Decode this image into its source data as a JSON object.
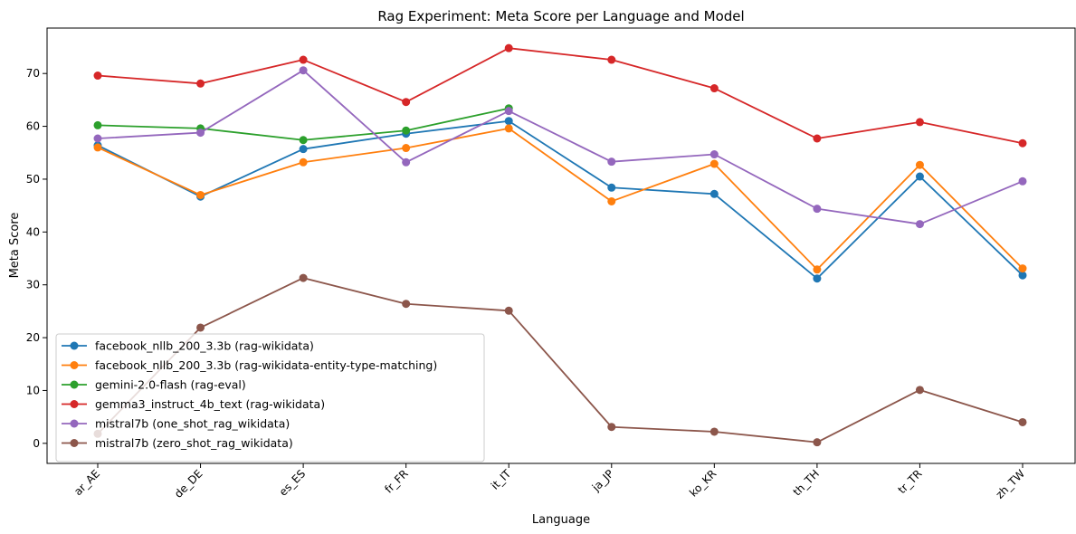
{
  "chart_data": {
    "type": "line",
    "title": "Rag Experiment: Meta Score per Language and Model",
    "xlabel": "Language",
    "ylabel": "Meta Score",
    "categories": [
      "ar_AE",
      "de_DE",
      "es_ES",
      "fr_FR",
      "it_IT",
      "ja_JP",
      "ko_KR",
      "th_TH",
      "tr_TR",
      "zh_TW"
    ],
    "ylim": [
      -3.8,
      78.6
    ],
    "yticks": [
      0,
      10,
      20,
      30,
      40,
      50,
      60,
      70
    ],
    "grid": false,
    "legend_position": "lower-left",
    "series": [
      {
        "name": "facebook_nllb_200_3.3b (rag-wikidata)",
        "color": "#1f77b4",
        "values": [
          56.4,
          46.7,
          55.7,
          58.6,
          61.0,
          48.4,
          47.2,
          31.2,
          50.5,
          31.8
        ]
      },
      {
        "name": "facebook_nllb_200_3.3b (rag-wikidata-entity-type-matching)",
        "color": "#ff7f0e",
        "values": [
          56.0,
          47.0,
          53.2,
          55.9,
          59.6,
          45.8,
          52.9,
          32.9,
          52.7,
          33.1
        ]
      },
      {
        "name": "gemini-2.0-flash (rag-eval)",
        "color": "#2ca02c",
        "values": [
          60.2,
          59.6,
          57.4,
          59.2,
          63.4,
          null,
          null,
          null,
          null,
          null
        ]
      },
      {
        "name": "gemma3_instruct_4b_text (rag-wikidata)",
        "color": "#d62728",
        "values": [
          69.6,
          68.1,
          72.6,
          64.6,
          74.8,
          72.6,
          67.2,
          57.7,
          60.8,
          56.8
        ]
      },
      {
        "name": "mistral7b (one_shot_rag_wikidata)",
        "color": "#9467bd",
        "values": [
          57.7,
          58.8,
          70.6,
          53.2,
          62.9,
          53.3,
          54.7,
          44.4,
          41.5,
          49.6
        ]
      },
      {
        "name": "mistral7b (zero_shot_rag_wikidata)",
        "color": "#8c564b",
        "values": [
          1.8,
          21.9,
          31.3,
          26.4,
          25.1,
          3.1,
          2.2,
          0.2,
          10.1,
          4.0
        ]
      }
    ]
  }
}
